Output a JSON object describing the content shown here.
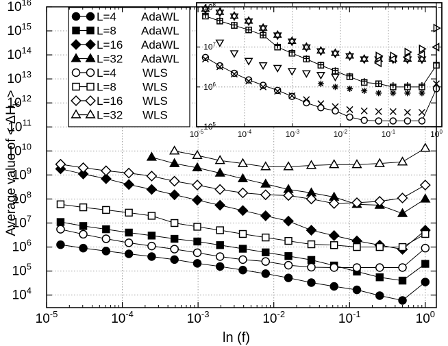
{
  "chart_data": [
    {
      "type": "line",
      "id": "main",
      "scale": "log-log",
      "xlabel_main": "ln (f)",
      "ylabel_prefix": "Average value of < ΔH",
      "ylabel_sub": "k",
      "ylabel_suffix": " >",
      "xlim": [
        1e-05,
        1.4
      ],
      "ylim": [
        3000,
        10000000000000000
      ],
      "x_ticks": [
        {
          "value": 1e-05,
          "base": "10",
          "exp": "-5"
        },
        {
          "value": 0.0001,
          "base": "10",
          "exp": "-4"
        },
        {
          "value": 0.001,
          "base": "10",
          "exp": "-3"
        },
        {
          "value": 0.01,
          "base": "10",
          "exp": "-2"
        },
        {
          "value": 0.1,
          "base": "10",
          "exp": "-1"
        },
        {
          "value": 1,
          "base": "10",
          "exp": "0"
        }
      ],
      "y_ticks": [
        {
          "value": 10000,
          "base": "10",
          "exp": "4"
        },
        {
          "value": 100000,
          "base": "10",
          "exp": "5"
        },
        {
          "value": 1000000,
          "base": "10",
          "exp": "6"
        },
        {
          "value": 10000000,
          "base": "10",
          "exp": "7"
        },
        {
          "value": 100000000,
          "base": "10",
          "exp": "8"
        },
        {
          "value": 1000000000,
          "base": "10",
          "exp": "9"
        },
        {
          "value": 10000000000,
          "base": "10",
          "exp": "10"
        },
        {
          "value": 100000000000,
          "base": "10",
          "exp": "11"
        },
        {
          "value": 1000000000000,
          "base": "10",
          "exp": "12"
        },
        {
          "value": 10000000000000,
          "base": "10",
          "exp": "13"
        },
        {
          "value": 100000000000000,
          "base": "10",
          "exp": "14"
        },
        {
          "value": 1000000000000000,
          "base": "10",
          "exp": "15"
        },
        {
          "value": 10000000000000000,
          "base": "10",
          "exp": "16"
        }
      ],
      "grid": true,
      "legend_position": "top-left",
      "series": [
        {
          "name": "L=4",
          "method": "AdaWL",
          "marker": "circle-filled",
          "x": [
            1.53e-05,
            3.05e-05,
            6.1e-05,
            0.000122,
            0.000244,
            0.000488,
            0.000977,
            0.00195,
            0.0039,
            0.0078,
            0.0156,
            0.0313,
            0.0625,
            0.125,
            0.25,
            0.5,
            1
          ],
          "y": [
            1250000,
            900000,
            680000,
            520000,
            400000,
            300000,
            210000,
            155000,
            110000,
            78000,
            52000,
            33000,
            23000,
            16500,
            9500,
            6000,
            35000
          ]
        },
        {
          "name": "L=8",
          "method": "AdaWL",
          "marker": "square-filled",
          "x": [
            1.53e-05,
            3.05e-05,
            6.1e-05,
            0.000122,
            0.000244,
            0.000488,
            0.000977,
            0.00195,
            0.0039,
            0.0078,
            0.0156,
            0.0313,
            0.0625,
            0.125,
            0.25,
            0.5,
            1
          ],
          "y": [
            11000000,
            7500000,
            5500000,
            4000000,
            3000000,
            2200000,
            1700000,
            1200000,
            850000,
            600000,
            420000,
            290000,
            170000,
            95000,
            55000,
            40000,
            200000
          ]
        },
        {
          "name": "L=16",
          "method": "AdaWL",
          "marker": "diamond-filled",
          "x": [
            1.53e-05,
            3.05e-05,
            6.1e-05,
            0.000122,
            0.000244,
            0.000488,
            0.000977,
            0.00195,
            0.0039,
            0.0078,
            0.0156,
            0.0313,
            0.0625,
            0.125,
            0.25,
            0.5,
            1
          ],
          "y": [
            1800000000,
            1100000000,
            700000000,
            400000000,
            250000000,
            150000000,
            90000000,
            55000000,
            33000000,
            20000000,
            12000000,
            5000000,
            3000000,
            1800000,
            1200000,
            800000,
            5000000
          ]
        },
        {
          "name": "L=32",
          "method": "AdaWL",
          "marker": "triangle-filled",
          "x": [
            0.000244,
            0.000488,
            0.000977,
            0.00195,
            0.0039,
            0.0078,
            0.0156,
            0.0313,
            0.0625,
            0.125,
            0.25,
            0.5,
            1
          ],
          "y": [
            5500000000,
            3000000000,
            2000000000,
            1200000000,
            700000000,
            420000000,
            250000000,
            180000000,
            120000000,
            60000000,
            55000000,
            25000000,
            100000000
          ]
        },
        {
          "name": "L=4",
          "method": "WLS",
          "marker": "circle-open",
          "x": [
            1.53e-05,
            3.05e-05,
            6.1e-05,
            0.000122,
            0.000244,
            0.000488,
            0.000977,
            0.00195,
            0.0039,
            0.0078,
            0.0156,
            0.0313,
            0.0625,
            0.125,
            0.25,
            0.5,
            1
          ],
          "y": [
            5500000,
            3400000,
            2200000,
            1500000,
            1100000,
            820000,
            580000,
            400000,
            300000,
            250000,
            175000,
            145000,
            140000,
            140000,
            140000,
            140000,
            900000
          ]
        },
        {
          "name": "L=8",
          "method": "WLS",
          "marker": "square-open",
          "x": [
            1.53e-05,
            3.05e-05,
            6.1e-05,
            0.000122,
            0.000244,
            0.000488,
            0.000977,
            0.00195,
            0.0039,
            0.0078,
            0.0156,
            0.0313,
            0.0625,
            0.125,
            0.25,
            0.5,
            1
          ],
          "y": [
            60000000,
            45000000,
            35000000,
            27000000,
            20000000,
            10000000,
            7000000,
            5000000,
            3500000,
            2500000,
            1800000,
            1300000,
            1200000,
            1000000,
            1000000,
            1000000,
            3500000
          ]
        },
        {
          "name": "L=16",
          "method": "WLS",
          "marker": "diamond-open",
          "x": [
            1.53e-05,
            3.05e-05,
            6.1e-05,
            0.000122,
            0.000244,
            0.000488,
            0.000977,
            0.00195,
            0.0039,
            0.0078,
            0.0156,
            0.0313,
            0.0625,
            0.125,
            0.25,
            0.5,
            1
          ],
          "y": [
            2800000000,
            2000000000,
            1500000000,
            1200000000,
            900000000,
            550000000,
            380000000,
            250000000,
            180000000,
            150000000,
            140000000,
            100000000,
            65000000,
            70000000,
            80000000,
            110000000,
            380000000
          ]
        },
        {
          "name": "L=32",
          "method": "WLS",
          "marker": "triangle-open",
          "x": [
            0.000488,
            0.000977,
            0.00195,
            0.0039,
            0.0078,
            0.0156,
            0.0313,
            0.0625,
            0.125,
            0.25,
            0.5,
            1
          ],
          "y": [
            10000000000,
            6500000000,
            4000000000,
            3000000000,
            2200000000,
            2200000000,
            2500000000,
            2700000000,
            2700000000,
            3000000000,
            3500000000,
            13000000000
          ]
        }
      ]
    },
    {
      "type": "scatter",
      "id": "inset",
      "scale": "log-log",
      "xlim": [
        1e-05,
        1.3
      ],
      "ylim": [
        100000,
        130000000
      ],
      "x_ticks": [
        {
          "value": 1e-05,
          "base": "10",
          "exp": "-5"
        },
        {
          "value": 0.0001,
          "base": "10",
          "exp": "-4"
        },
        {
          "value": 0.001,
          "base": "10",
          "exp": "-3"
        },
        {
          "value": 0.01,
          "base": "10",
          "exp": "-2"
        },
        {
          "value": 0.1,
          "base": "10",
          "exp": "-1"
        },
        {
          "value": 1,
          "base": "10",
          "exp": "0"
        }
      ],
      "y_ticks": [
        {
          "value": 100000,
          "base": "10",
          "exp": "5"
        },
        {
          "value": 1000000,
          "base": "10",
          "exp": "6"
        },
        {
          "value": 10000000,
          "base": "10",
          "exp": "7"
        },
        {
          "value": 100000000,
          "base": "10",
          "exp": "8"
        }
      ],
      "grid": true,
      "series": [
        {
          "name": "circle",
          "marker": "circle-open",
          "lines": true,
          "x": [
            1.53e-05,
            3.05e-05,
            6.1e-05,
            0.000122,
            0.000244,
            0.000488,
            0.000977,
            0.00195,
            0.0039,
            0.0078,
            0.0156,
            0.0313,
            0.0625,
            0.125,
            0.25,
            0.5,
            1
          ],
          "y": [
            5500000,
            3400000,
            2200000,
            1500000,
            1100000,
            820000,
            580000,
            400000,
            300000,
            250000,
            175000,
            145000,
            140000,
            140000,
            140000,
            140000,
            900000
          ]
        },
        {
          "name": "x",
          "marker": "x",
          "lines": false,
          "x": [
            1.53e-05,
            3.05e-05,
            6.1e-05,
            0.000122,
            0.000244,
            0.000488,
            0.000977,
            0.00195,
            0.0039,
            0.0078,
            0.0156,
            0.0313,
            0.0625,
            0.125,
            0.25,
            0.5,
            1
          ],
          "y": [
            5000000,
            3200000,
            2100000,
            1400000,
            1000000,
            780000,
            600000,
            480000,
            380000,
            320000,
            270000,
            250000,
            240000,
            240000,
            230000,
            230000,
            1200000
          ]
        },
        {
          "name": "square",
          "marker": "square-open",
          "lines": true,
          "x": [
            1.53e-05,
            3.05e-05,
            6.1e-05,
            0.000122,
            0.000244,
            0.000488,
            0.000977,
            0.00195,
            0.0039,
            0.0078,
            0.0156,
            0.0313,
            0.0625,
            0.125,
            0.25,
            0.5,
            1
          ],
          "y": [
            60000000,
            45000000,
            35000000,
            27000000,
            20000000,
            10000000,
            7000000,
            5000000,
            3500000,
            2500000,
            1800000,
            1300000,
            1200000,
            1000000,
            1000000,
            1000000,
            3500000
          ]
        },
        {
          "name": "plus",
          "marker": "plus",
          "lines": false,
          "x": [
            1.53e-05,
            3.05e-05,
            6.1e-05,
            0.000122,
            0.000244,
            0.000488,
            0.000977,
            0.00195,
            0.0039,
            0.0078,
            0.0156,
            0.0313,
            0.0625,
            0.125,
            0.25,
            0.5,
            1
          ],
          "y": [
            65000000,
            47000000,
            36000000,
            27000000,
            20000000,
            11000000,
            7500000,
            5200000,
            3600000,
            2600000,
            1900000,
            1400000,
            1200000,
            1100000,
            1100000,
            1100000,
            4000000
          ]
        },
        {
          "name": "triangle-down",
          "marker": "triangle-down-open",
          "lines": false,
          "x": [
            3.05e-05,
            6.1e-05,
            0.000122,
            0.000244,
            0.000488,
            0.000977,
            0.00195,
            0.0039,
            0.0078
          ],
          "y": [
            13000000,
            7000000,
            4500000,
            3500000,
            3000000,
            2500000,
            2200000,
            2000000,
            1800000
          ]
        },
        {
          "name": "asterisk",
          "marker": "asterisk",
          "lines": false,
          "x": [
            0.0039,
            0.0078,
            0.0156,
            0.0313,
            0.0625,
            0.125,
            0.25,
            0.5
          ],
          "y": [
            1200000,
            1000000,
            900000,
            800000,
            700000,
            700000,
            700000,
            700000
          ]
        },
        {
          "name": "star",
          "marker": "star-open",
          "lines": false,
          "x": [
            1.53e-05,
            3.05e-05,
            6.1e-05,
            0.000122,
            0.000244,
            0.000488,
            0.000977,
            0.00195,
            0.0039,
            0.0078,
            0.0156,
            0.0313,
            0.0625,
            0.125,
            0.25,
            0.5
          ],
          "y": [
            90000000,
            75000000,
            60000000,
            45000000,
            30000000,
            20000000,
            14000000,
            10000000,
            8000000,
            7000000,
            6000000,
            5000000,
            5000000,
            5000000,
            5000000,
            5000000
          ]
        },
        {
          "name": "triangle-right",
          "marker": "triangle-right-open",
          "lines": false,
          "x": [
            0.0625,
            0.125,
            0.25,
            0.5,
            1
          ],
          "y": [
            6000000,
            6000000,
            7500000,
            9000000,
            30000000
          ]
        },
        {
          "name": "triangle-left",
          "marker": "triangle-left-open",
          "lines": false,
          "x": [
            0.0625,
            0.125,
            0.25,
            0.5,
            1
          ],
          "y": [
            4000000,
            5000000,
            5500000,
            6500000,
            10000000
          ]
        }
      ]
    }
  ]
}
